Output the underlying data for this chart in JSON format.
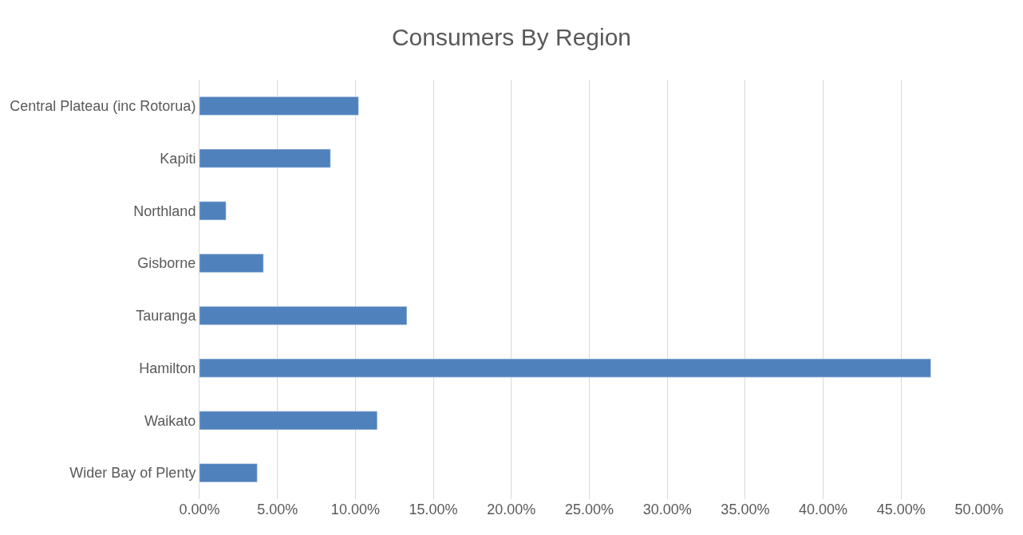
{
  "chart_data": {
    "type": "bar",
    "orientation": "horizontal",
    "title": "Consumers By Region",
    "categories": [
      "Central Plateau (inc Rotorua)",
      "Kapiti",
      "Northland",
      "Gisborne",
      "Tauranga",
      "Hamilton",
      "Waikato",
      "Wider Bay of Plenty"
    ],
    "values": [
      10.2,
      8.4,
      1.7,
      4.1,
      13.3,
      46.9,
      11.4,
      3.7
    ],
    "color": "#4f81bd",
    "xlim": [
      0,
      50
    ],
    "xticks": [
      {
        "value": 0,
        "label": "0.00%"
      },
      {
        "value": 5,
        "label": "5.00%"
      },
      {
        "value": 10,
        "label": "10.00%"
      },
      {
        "value": 15,
        "label": "15.00%"
      },
      {
        "value": 20,
        "label": "20.00%"
      },
      {
        "value": 25,
        "label": "25.00%"
      },
      {
        "value": 30,
        "label": "30.00%"
      },
      {
        "value": 35,
        "label": "35.00%"
      },
      {
        "value": 40,
        "label": "40.00%"
      },
      {
        "value": 45,
        "label": "45.00%"
      },
      {
        "value": 50,
        "label": "50.00%"
      }
    ],
    "grid": "x"
  }
}
